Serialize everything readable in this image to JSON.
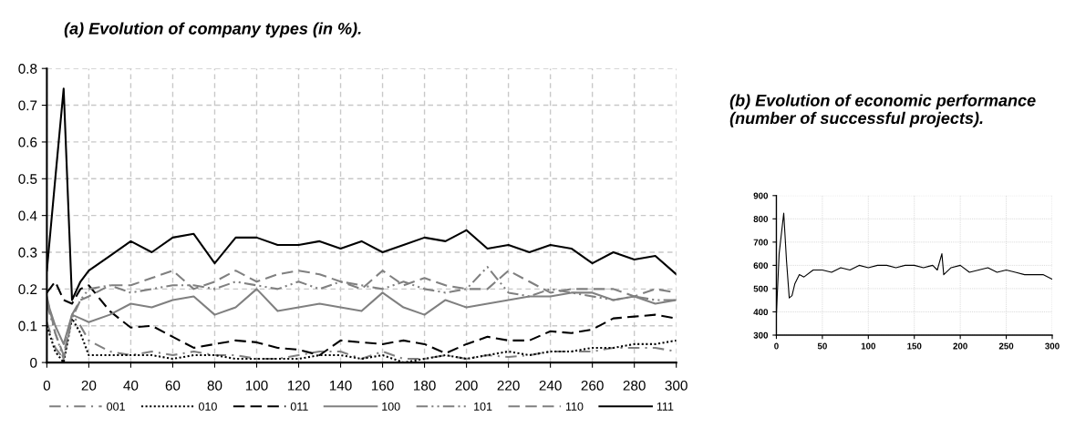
{
  "chart_data": [
    {
      "type": "line",
      "title": "(a) Evolution of company types (in %).",
      "x": [
        0,
        4,
        8,
        12,
        16,
        20,
        30,
        40,
        50,
        60,
        70,
        80,
        90,
        100,
        110,
        120,
        130,
        140,
        150,
        160,
        170,
        180,
        190,
        200,
        210,
        220,
        230,
        240,
        250,
        260,
        270,
        280,
        290,
        300
      ],
      "series": [
        {
          "name": "001",
          "color": "#808080",
          "line_style": "dashdot",
          "values": [
            0.11,
            0.04,
            0.01,
            0.13,
            0.1,
            0.06,
            0.03,
            0.02,
            0.03,
            0.02,
            0.03,
            0.02,
            0.02,
            0.01,
            0.01,
            0.02,
            0.03,
            0.03,
            0.01,
            0.03,
            0.01,
            0.01,
            0.02,
            0.01,
            0.02,
            0.015,
            0.02,
            0.03,
            0.03,
            0.03,
            0.04,
            0.04,
            0.04,
            0.03
          ]
        },
        {
          "name": "010",
          "color": "#000000",
          "line_style": "dotted",
          "values": [
            0.1,
            0.03,
            0.0,
            0.12,
            0.08,
            0.02,
            0.02,
            0.02,
            0.02,
            0.01,
            0.02,
            0.02,
            0.01,
            0.01,
            0.01,
            0.01,
            0.02,
            0.02,
            0.01,
            0.02,
            0.0,
            0.01,
            0.02,
            0.01,
            0.02,
            0.03,
            0.02,
            0.03,
            0.03,
            0.04,
            0.04,
            0.05,
            0.05,
            0.06
          ]
        },
        {
          "name": "011",
          "color": "#000000",
          "line_style": "dashed",
          "values": [
            0.19,
            0.22,
            0.17,
            0.16,
            0.2,
            0.21,
            0.14,
            0.095,
            0.1,
            0.07,
            0.04,
            0.05,
            0.06,
            0.055,
            0.04,
            0.035,
            0.02,
            0.06,
            0.055,
            0.05,
            0.06,
            0.05,
            0.025,
            0.05,
            0.07,
            0.06,
            0.06,
            0.085,
            0.08,
            0.09,
            0.12,
            0.125,
            0.13,
            0.12
          ]
        },
        {
          "name": "100",
          "color": "#808080",
          "line_style": "solid",
          "values": [
            0.17,
            0.1,
            0.05,
            0.13,
            0.12,
            0.11,
            0.13,
            0.16,
            0.15,
            0.17,
            0.18,
            0.13,
            0.15,
            0.2,
            0.14,
            0.15,
            0.16,
            0.15,
            0.14,
            0.19,
            0.15,
            0.13,
            0.17,
            0.15,
            0.16,
            0.17,
            0.18,
            0.18,
            0.19,
            0.19,
            0.17,
            0.18,
            0.16,
            0.17
          ]
        },
        {
          "name": "101",
          "color": "#808080",
          "line_style": "dashdotdot",
          "values": [
            0.16,
            0.08,
            0.01,
            0.12,
            0.17,
            0.2,
            0.21,
            0.19,
            0.2,
            0.21,
            0.21,
            0.2,
            0.22,
            0.21,
            0.2,
            0.22,
            0.2,
            0.22,
            0.21,
            0.2,
            0.22,
            0.2,
            0.19,
            0.2,
            0.26,
            0.19,
            0.18,
            0.2,
            0.19,
            0.18,
            0.17,
            0.18,
            0.17,
            0.17
          ]
        },
        {
          "name": "110",
          "color": "#808080",
          "line_style": "dashed",
          "values": [
            0.18,
            0.08,
            0.02,
            0.13,
            0.17,
            0.18,
            0.21,
            0.21,
            0.23,
            0.25,
            0.2,
            0.22,
            0.25,
            0.22,
            0.24,
            0.25,
            0.24,
            0.22,
            0.2,
            0.25,
            0.21,
            0.23,
            0.21,
            0.2,
            0.2,
            0.25,
            0.22,
            0.19,
            0.2,
            0.2,
            0.2,
            0.18,
            0.2,
            0.19
          ]
        },
        {
          "name": "111",
          "color": "#000000",
          "line_style": "solid",
          "values": [
            0.25,
            0.5,
            0.745,
            0.17,
            0.22,
            0.25,
            0.29,
            0.33,
            0.3,
            0.34,
            0.35,
            0.27,
            0.34,
            0.34,
            0.32,
            0.32,
            0.33,
            0.31,
            0.33,
            0.3,
            0.32,
            0.34,
            0.33,
            0.36,
            0.31,
            0.32,
            0.3,
            0.32,
            0.31,
            0.27,
            0.3,
            0.28,
            0.29,
            0.24
          ]
        }
      ],
      "xlim": [
        0,
        300
      ],
      "xticks": [
        0,
        20,
        40,
        60,
        80,
        100,
        120,
        140,
        160,
        180,
        200,
        220,
        240,
        260,
        280,
        300
      ],
      "ylim": [
        0,
        0.8
      ],
      "yticks": [
        0,
        0.1,
        0.2,
        0.3,
        0.4,
        0.5,
        0.6,
        0.7,
        0.8
      ],
      "grid": true,
      "legend": "bottom"
    },
    {
      "type": "line",
      "title": "(b) Evolution of economic performance (number of successful projects).",
      "x": [
        0,
        3,
        8,
        11,
        14,
        17,
        20,
        25,
        30,
        40,
        50,
        60,
        70,
        80,
        90,
        100,
        110,
        120,
        130,
        140,
        150,
        160,
        170,
        175,
        180,
        182,
        190,
        200,
        210,
        220,
        230,
        240,
        250,
        260,
        270,
        280,
        290,
        300
      ],
      "series": [
        {
          "color": "#000000",
          "values": [
            390,
            650,
            825,
            620,
            460,
            470,
            520,
            560,
            550,
            580,
            580,
            570,
            590,
            580,
            600,
            590,
            600,
            600,
            590,
            600,
            600,
            590,
            600,
            580,
            650,
            560,
            590,
            600,
            570,
            580,
            590,
            570,
            580,
            570,
            560,
            560,
            560,
            540
          ]
        }
      ],
      "xlim": [
        0,
        300
      ],
      "xticks": [
        0,
        50,
        100,
        150,
        200,
        250,
        300
      ],
      "ylim": [
        300,
        900
      ],
      "yticks": [
        300,
        400,
        500,
        600,
        700,
        800,
        900
      ],
      "grid": true
    }
  ]
}
